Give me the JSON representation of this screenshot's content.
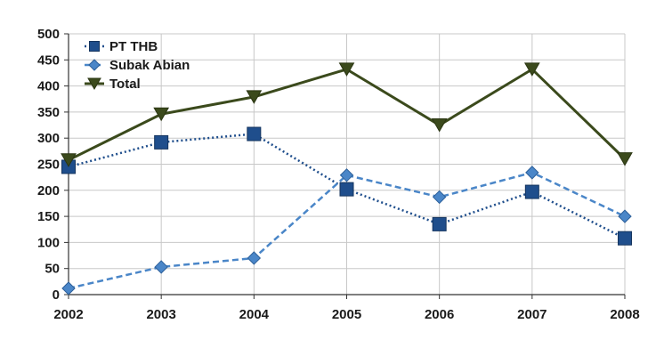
{
  "chart_data": {
    "type": "line",
    "categories": [
      "2002",
      "2003",
      "2004",
      "2005",
      "2006",
      "2007",
      "2008"
    ],
    "ylim": [
      0,
      500
    ],
    "yticks": [
      0,
      50,
      100,
      150,
      200,
      250,
      300,
      350,
      400,
      450,
      500
    ],
    "grid": true,
    "legend_position": "top-left",
    "series": [
      {
        "name": "PT THB",
        "values": [
          245,
          292,
          308,
          202,
          135,
          197,
          108
        ],
        "color": "#1f4e8c",
        "marker": "square",
        "line": "dotted"
      },
      {
        "name": "Subak Abian",
        "values": [
          12,
          53,
          70,
          229,
          187,
          234,
          150
        ],
        "color": "#4a86c8",
        "marker": "diamond",
        "line": "dashed"
      },
      {
        "name": "Total",
        "values": [
          258,
          346,
          379,
          432,
          325,
          432,
          260
        ],
        "color": "#3b4a1c",
        "marker": "triangle-down",
        "line": "solid"
      }
    ]
  }
}
